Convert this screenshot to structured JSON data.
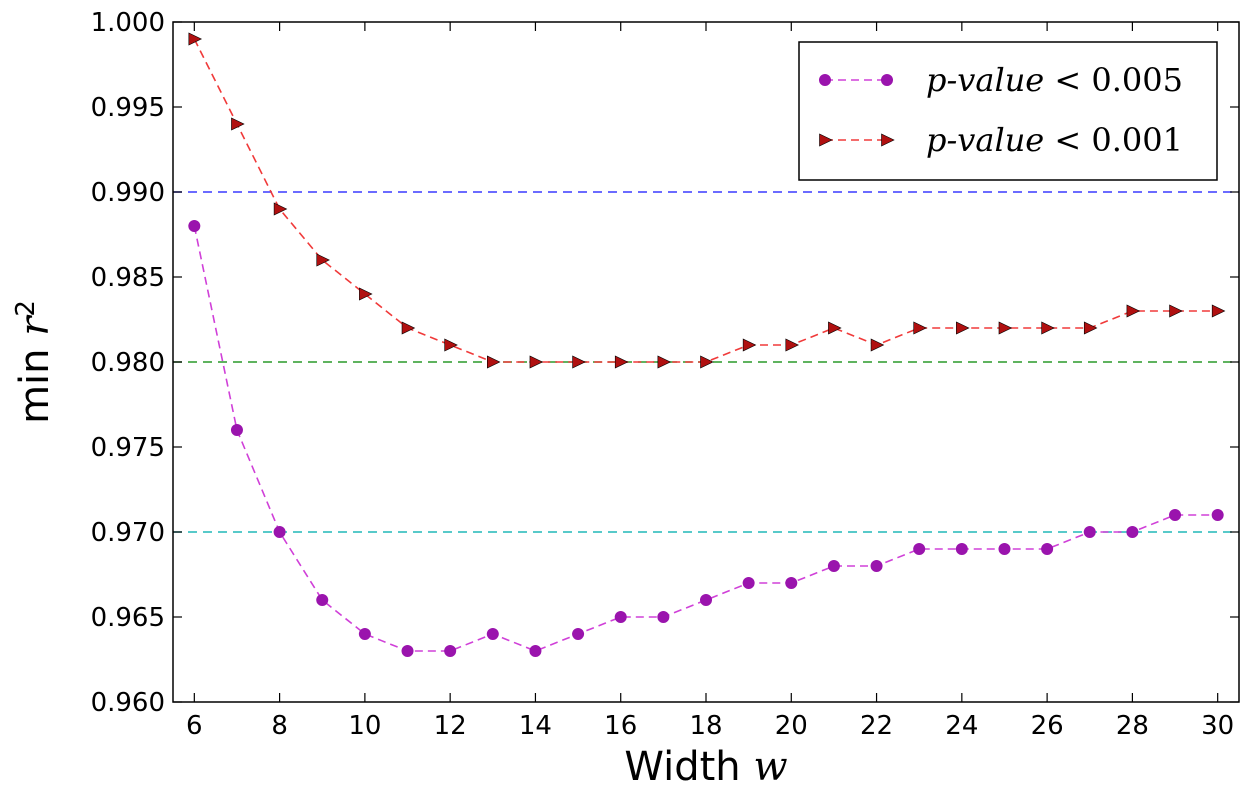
{
  "chart_data": {
    "type": "line",
    "xlabel": "Width",
    "xlabel_math": "w",
    "ylabel": "min",
    "ylabel_math": "r",
    "ylabel_sup": "2",
    "xlim": [
      5.5,
      30.5
    ],
    "ylim": [
      0.96,
      1.0
    ],
    "xticks": [
      6,
      8,
      10,
      12,
      14,
      16,
      18,
      20,
      22,
      24,
      26,
      28,
      30
    ],
    "yticks": [
      0.96,
      0.965,
      0.97,
      0.975,
      0.98,
      0.985,
      0.99,
      0.995,
      1.0
    ],
    "ytick_labels": [
      "0.960",
      "0.965",
      "0.970",
      "0.975",
      "0.980",
      "0.985",
      "0.990",
      "0.995",
      "1.000"
    ],
    "grid": false,
    "legend_position": "top-right",
    "x": [
      6,
      7,
      8,
      9,
      10,
      11,
      12,
      13,
      14,
      15,
      16,
      17,
      18,
      19,
      20,
      21,
      22,
      23,
      24,
      25,
      26,
      27,
      28,
      29,
      30
    ],
    "series": [
      {
        "name": "p-value < 0.005",
        "name_main": "p-value",
        "name_rest": "< 0.005",
        "color": "#d040d8",
        "marker_color": "#9a14ad",
        "marker": "circle",
        "values": [
          0.988,
          0.976,
          0.97,
          0.966,
          0.964,
          0.963,
          0.963,
          0.964,
          0.963,
          0.964,
          0.965,
          0.965,
          0.966,
          0.967,
          0.967,
          0.968,
          0.968,
          0.969,
          0.969,
          0.969,
          0.969,
          0.97,
          0.97,
          0.971,
          0.971
        ]
      },
      {
        "name": "p-value < 0.001",
        "name_main": "p-value",
        "name_rest": "< 0.001",
        "color": "#f03a3a",
        "marker_color": "#b01010",
        "marker": "triangle-right",
        "values": [
          0.999,
          0.994,
          0.989,
          0.986,
          0.984,
          0.982,
          0.981,
          0.98,
          0.98,
          0.98,
          0.98,
          0.98,
          0.98,
          0.981,
          0.981,
          0.982,
          0.981,
          0.982,
          0.982,
          0.982,
          0.982,
          0.982,
          0.983,
          0.983,
          0.983
        ]
      }
    ],
    "reference_lines": [
      {
        "y": 0.99,
        "color": "#3a3aff"
      },
      {
        "y": 0.98,
        "color": "#2a9a2a"
      },
      {
        "y": 0.97,
        "color": "#20b8b8"
      }
    ]
  }
}
